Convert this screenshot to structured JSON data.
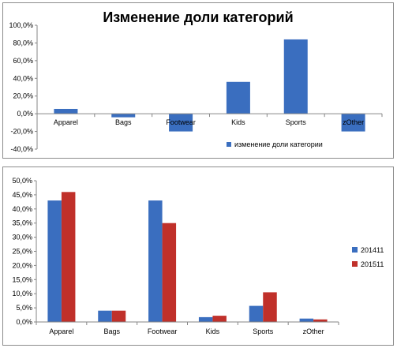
{
  "chart_data": [
    {
      "type": "bar",
      "title": "Изменение доли категорий",
      "categories": [
        "Apparel",
        "Bags",
        "Footwear",
        "Kids",
        "Sports",
        "zOther"
      ],
      "series": [
        {
          "name": "изменение доли категории",
          "values": [
            5.5,
            -4.0,
            -20.0,
            36.0,
            84.0,
            -20.0
          ],
          "color": "#3A6EBF"
        }
      ],
      "yticks": [
        "100,0%",
        "80,0%",
        "60,0%",
        "40,0%",
        "20,0%",
        "0,0%",
        "-20,0%",
        "-40,0%"
      ],
      "ylim": [
        -40,
        100
      ],
      "legend": "bottom-right",
      "grid": false
    },
    {
      "type": "bar",
      "categories": [
        "Apparel",
        "Bags",
        "Footwear",
        "Kids",
        "Sports",
        "zOther"
      ],
      "series": [
        {
          "name": "201411",
          "values": [
            43.0,
            4.0,
            43.0,
            1.7,
            5.7,
            1.2
          ],
          "color": "#3A6EBF"
        },
        {
          "name": "201511",
          "values": [
            46.0,
            4.0,
            35.0,
            2.2,
            10.5,
            0.9
          ],
          "color": "#C0302A"
        }
      ],
      "yticks": [
        "50,0%",
        "45,0%",
        "40,0%",
        "35,0%",
        "30,0%",
        "25,0%",
        "20,0%",
        "15,0%",
        "10,0%",
        "5,0%",
        "0,0%"
      ],
      "ylim": [
        0,
        50
      ],
      "legend": "right",
      "grid": false
    }
  ]
}
